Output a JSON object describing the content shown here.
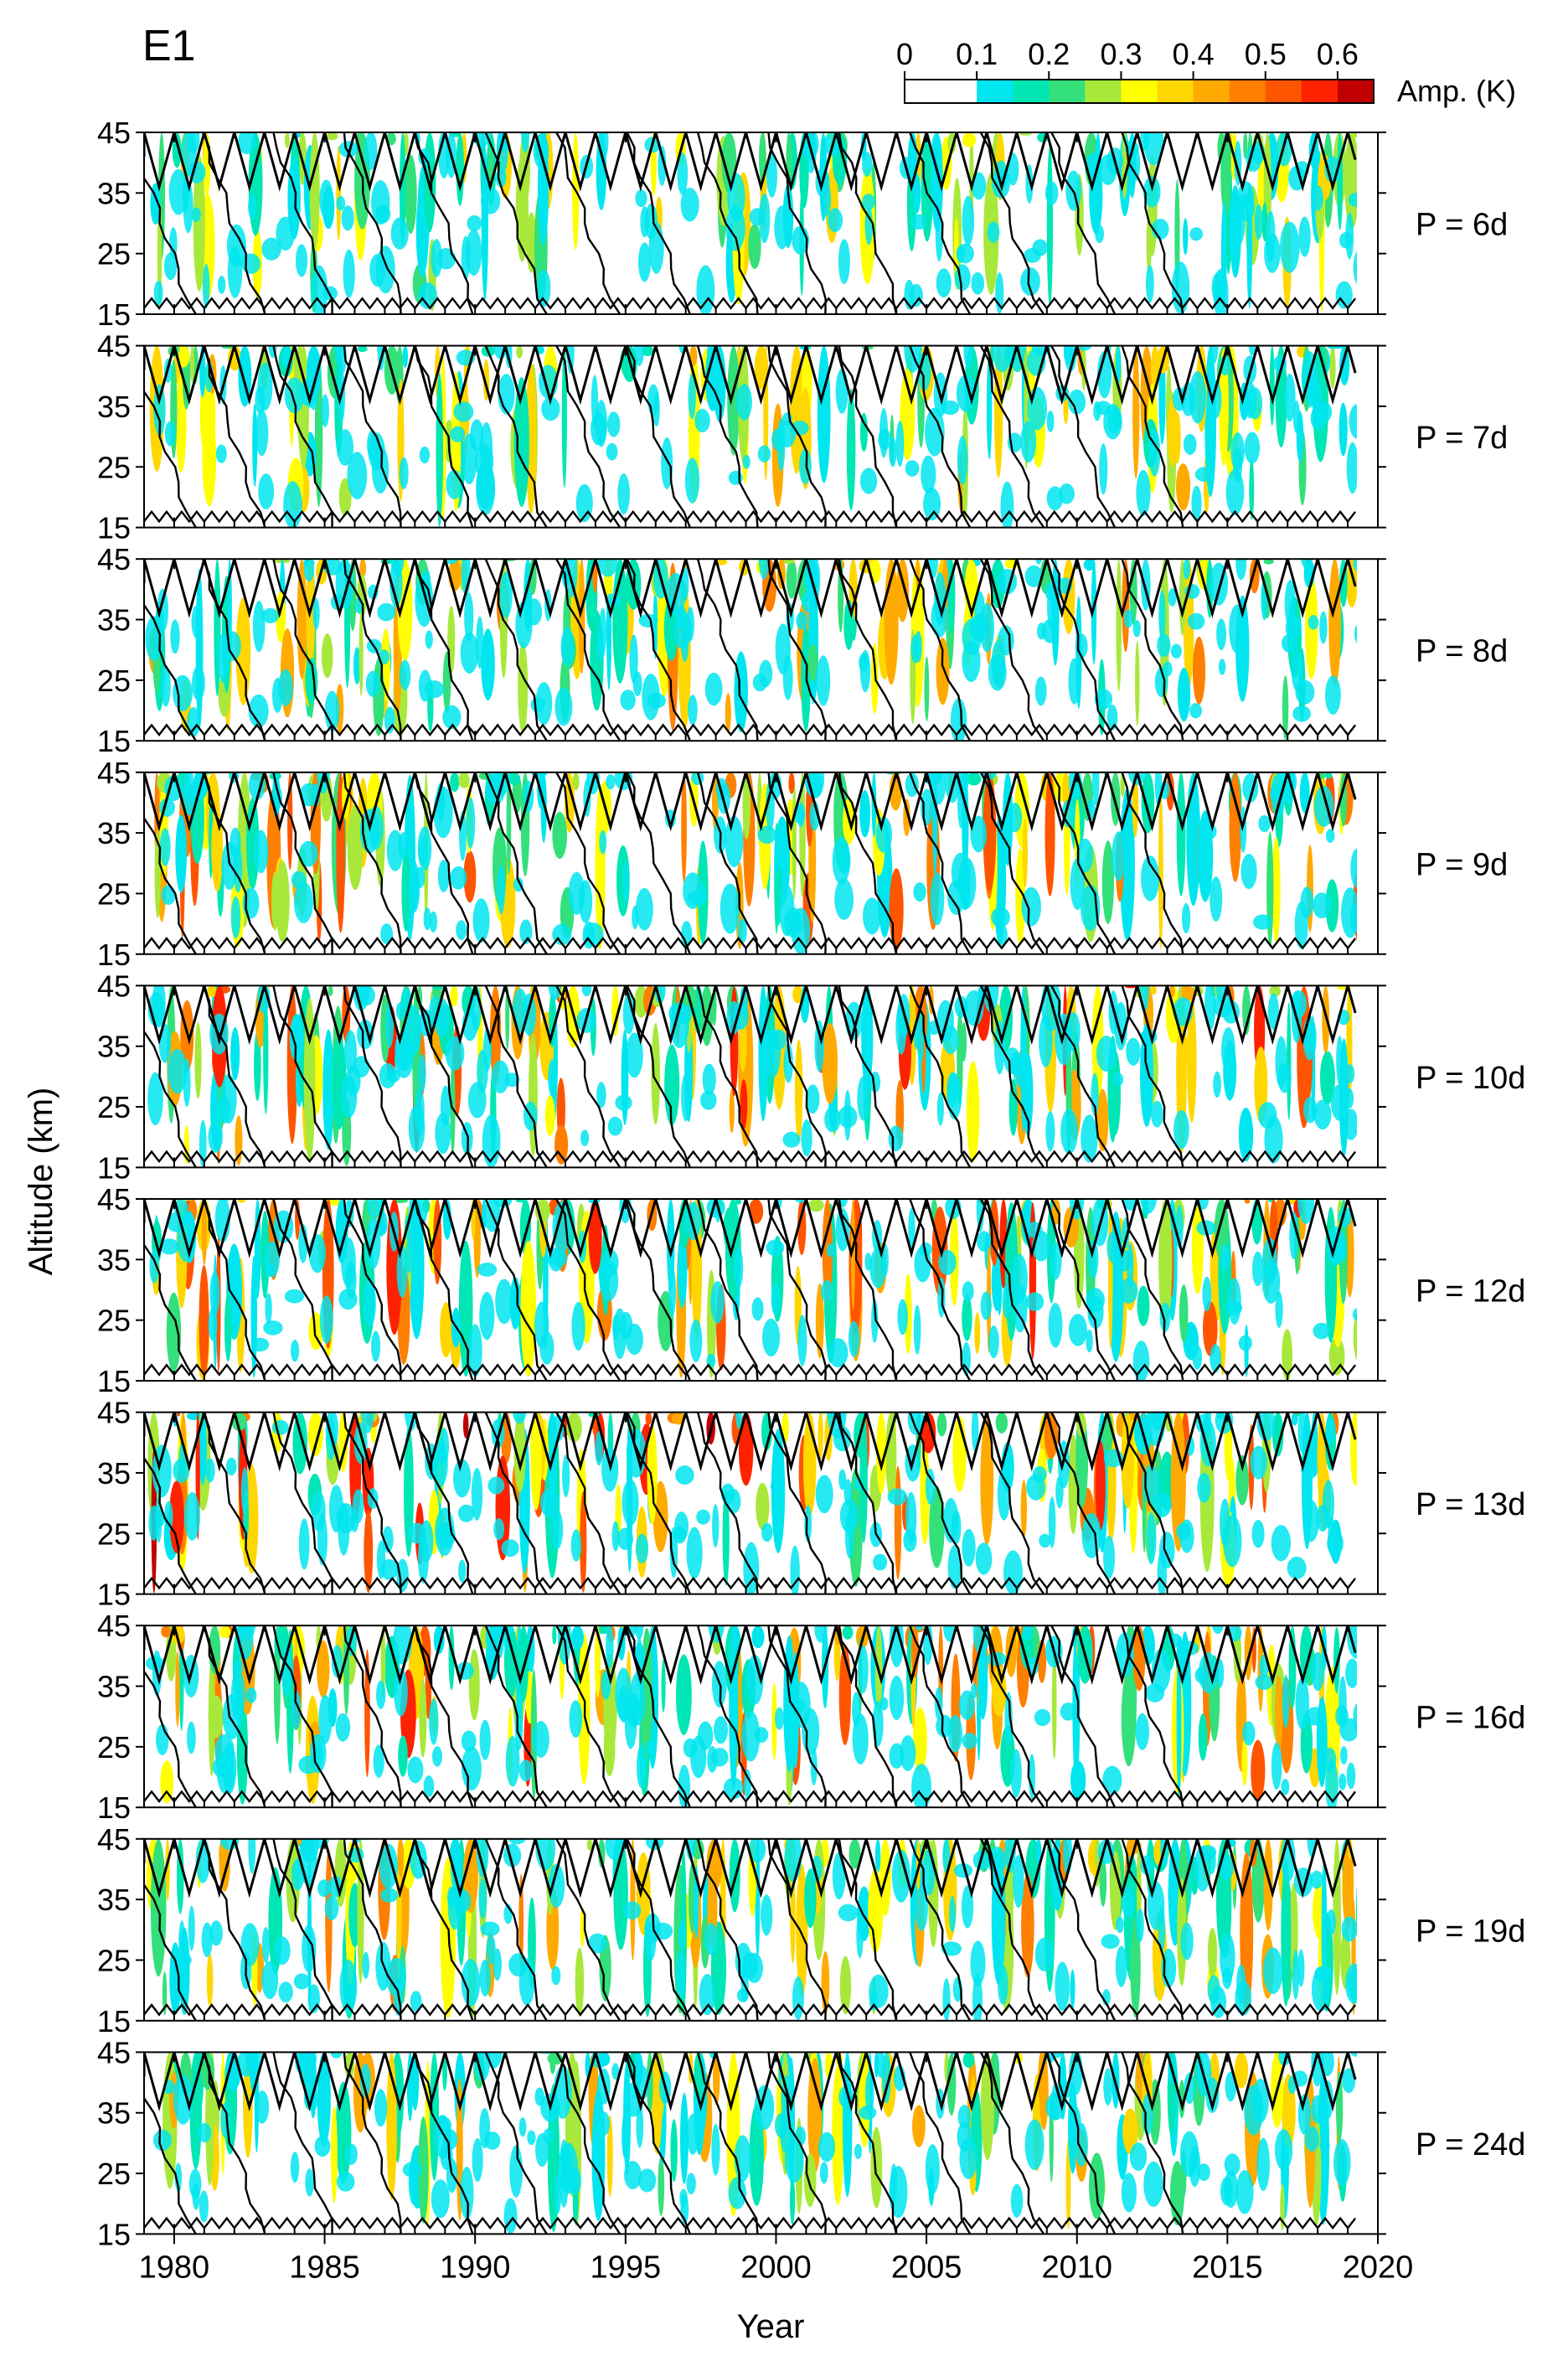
{
  "chart_data": {
    "type": "heatmap",
    "title": "E1",
    "xlabel": "Year",
    "ylabel": "Altitude (km)",
    "xlim": [
      1979,
      2020
    ],
    "ylim": [
      15,
      45
    ],
    "x_ticks": [
      "1980",
      "1985",
      "1990",
      "1995",
      "2000",
      "2005",
      "2010",
      "2015",
      "2020"
    ],
    "y_ticks": [
      "15",
      "25",
      "35",
      "45"
    ],
    "colorbar": {
      "label": "Amp. (K)",
      "tick_labels": [
        "0",
        "0.1",
        "0.2",
        "0.3",
        "0.4",
        "0.5",
        "0.6"
      ],
      "levels": [
        0,
        0.05,
        0.1,
        0.15,
        0.2,
        0.25,
        0.3,
        0.35,
        0.4,
        0.45,
        0.5,
        0.55,
        0.6,
        0.65
      ],
      "colors": [
        "#ffffff",
        "#ffffff",
        "#00e5ee",
        "#00e6b4",
        "#33e07a",
        "#a8e83a",
        "#ffff00",
        "#ffd700",
        "#ffaa00",
        "#ff7f00",
        "#ff5500",
        "#ff2200",
        "#c00000"
      ]
    },
    "panels": [
      {
        "label": "P = 6d",
        "intensity": 0.32
      },
      {
        "label": "P = 7d",
        "intensity": 0.35
      },
      {
        "label": "P = 8d",
        "intensity": 0.42
      },
      {
        "label": "P = 9d",
        "intensity": 0.52
      },
      {
        "label": "P = 10d",
        "intensity": 0.58
      },
      {
        "label": "P = 12d",
        "intensity": 0.6
      },
      {
        "label": "P = 13d",
        "intensity": 0.62
      },
      {
        "label": "P = 16d",
        "intensity": 0.55
      },
      {
        "label": "P = 19d",
        "intensity": 0.45
      },
      {
        "label": "P = 24d",
        "intensity": 0.4
      }
    ]
  }
}
